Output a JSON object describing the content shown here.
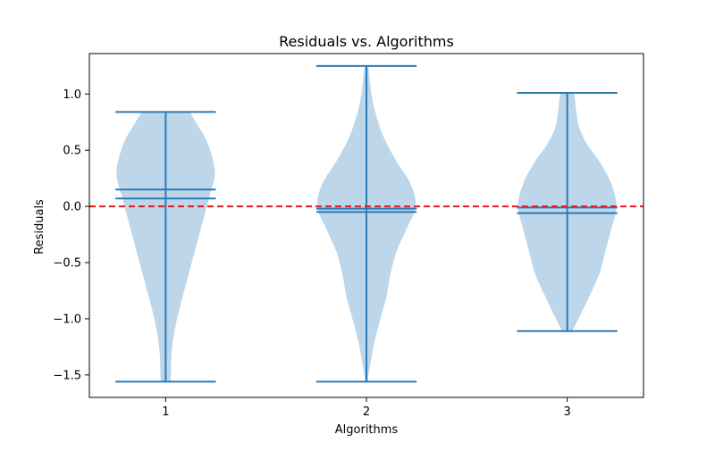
{
  "chart_data": {
    "type": "violin",
    "title": "Residuals vs. Algorithms",
    "xlabel": "Algorithms",
    "ylabel": "Residuals",
    "categories": [
      "1",
      "2",
      "3"
    ],
    "xlim": [
      0.62,
      3.38
    ],
    "ylim": [
      -1.7,
      1.36
    ],
    "yticks": [
      -1.5,
      -1.0,
      -0.5,
      0.0,
      0.5,
      1.0
    ],
    "ytick_labels": [
      "−1.5",
      "−1.0",
      "−0.5",
      "0.0",
      "0.5",
      "1.0"
    ],
    "grid": false,
    "reference_line": {
      "y": 0.0,
      "style": "dashed",
      "color": "#e31a1c"
    },
    "violin_color": "#a7c8e2",
    "stat_color": "#2b7bb9",
    "series": [
      {
        "category": "1",
        "min": -1.56,
        "max": 0.84,
        "mean": 0.15,
        "median": 0.07,
        "density": [
          [
            -1.56,
            0.025
          ],
          [
            -1.3,
            0.03
          ],
          [
            -1.1,
            0.045
          ],
          [
            -0.9,
            0.07
          ],
          [
            -0.7,
            0.1
          ],
          [
            -0.5,
            0.13
          ],
          [
            -0.3,
            0.16
          ],
          [
            -0.1,
            0.19
          ],
          [
            0.1,
            0.22
          ],
          [
            0.28,
            0.245
          ],
          [
            0.45,
            0.23
          ],
          [
            0.6,
            0.2
          ],
          [
            0.72,
            0.16
          ],
          [
            0.84,
            0.12
          ]
        ]
      },
      {
        "category": "2",
        "min": -1.56,
        "max": 1.25,
        "mean": -0.02,
        "median": -0.05,
        "density": [
          [
            -1.56,
            0.005
          ],
          [
            -1.4,
            0.02
          ],
          [
            -1.2,
            0.04
          ],
          [
            -1.0,
            0.07
          ],
          [
            -0.8,
            0.1
          ],
          [
            -0.6,
            0.12
          ],
          [
            -0.4,
            0.15
          ],
          [
            -0.2,
            0.2
          ],
          [
            0.0,
            0.245
          ],
          [
            0.2,
            0.22
          ],
          [
            0.4,
            0.15
          ],
          [
            0.6,
            0.09
          ],
          [
            0.8,
            0.05
          ],
          [
            1.0,
            0.025
          ],
          [
            1.25,
            0.01
          ]
        ]
      },
      {
        "category": "3",
        "min": -1.11,
        "max": 1.01,
        "mean": -0.01,
        "median": -0.06,
        "density": [
          [
            -1.11,
            0.025
          ],
          [
            -0.95,
            0.07
          ],
          [
            -0.8,
            0.11
          ],
          [
            -0.6,
            0.16
          ],
          [
            -0.4,
            0.19
          ],
          [
            -0.2,
            0.22
          ],
          [
            0.0,
            0.245
          ],
          [
            0.2,
            0.22
          ],
          [
            0.4,
            0.16
          ],
          [
            0.55,
            0.1
          ],
          [
            0.7,
            0.06
          ],
          [
            0.85,
            0.045
          ],
          [
            1.01,
            0.035
          ]
        ]
      }
    ]
  }
}
